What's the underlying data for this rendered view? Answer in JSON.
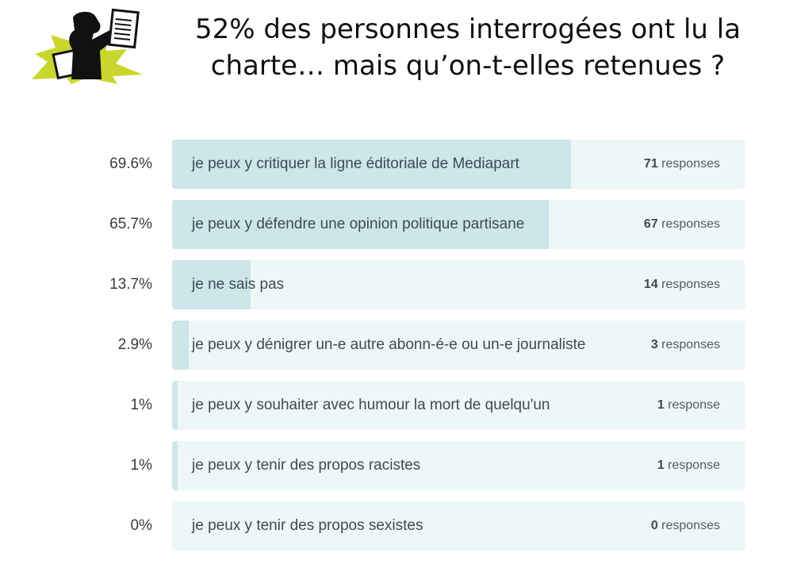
{
  "header": {
    "title_line1": "52% des personnes interrogées ont lu la",
    "title_line2": "charte… mais qu’on-t-elles retenues ?"
  },
  "colors": {
    "track": "#eef7f7",
    "fill": "#cde6ea",
    "logo_burst": "#c9d62e"
  },
  "chart_data": {
    "type": "bar",
    "orientation": "horizontal",
    "max_percent": 100,
    "rows": [
      {
        "percent_label": "69.6%",
        "percent": 69.6,
        "label": "je peux y critiquer la ligne éditoriale de Mediapart",
        "count": "71",
        "count_unit": "responses"
      },
      {
        "percent_label": "65.7%",
        "percent": 65.7,
        "label": "je peux y défendre une opinion politique partisane",
        "count": "67",
        "count_unit": "responses"
      },
      {
        "percent_label": "13.7%",
        "percent": 13.7,
        "label": "je ne sais pas",
        "count": "14",
        "count_unit": "responses"
      },
      {
        "percent_label": "2.9%",
        "percent": 2.9,
        "label": "je peux y dénigrer un-e autre abonn-é-e ou un-e journaliste",
        "count": "3",
        "count_unit": "responses"
      },
      {
        "percent_label": "1%",
        "percent": 1,
        "label": "je peux y souhaiter avec humour la mort de quelqu'un",
        "count": "1",
        "count_unit": "response"
      },
      {
        "percent_label": "1%",
        "percent": 1,
        "label": "je peux y tenir des propos racistes",
        "count": "1",
        "count_unit": "response"
      },
      {
        "percent_label": "0%",
        "percent": 0,
        "label": "je peux y tenir des propos sexistes",
        "count": "0",
        "count_unit": "responses"
      }
    ]
  }
}
